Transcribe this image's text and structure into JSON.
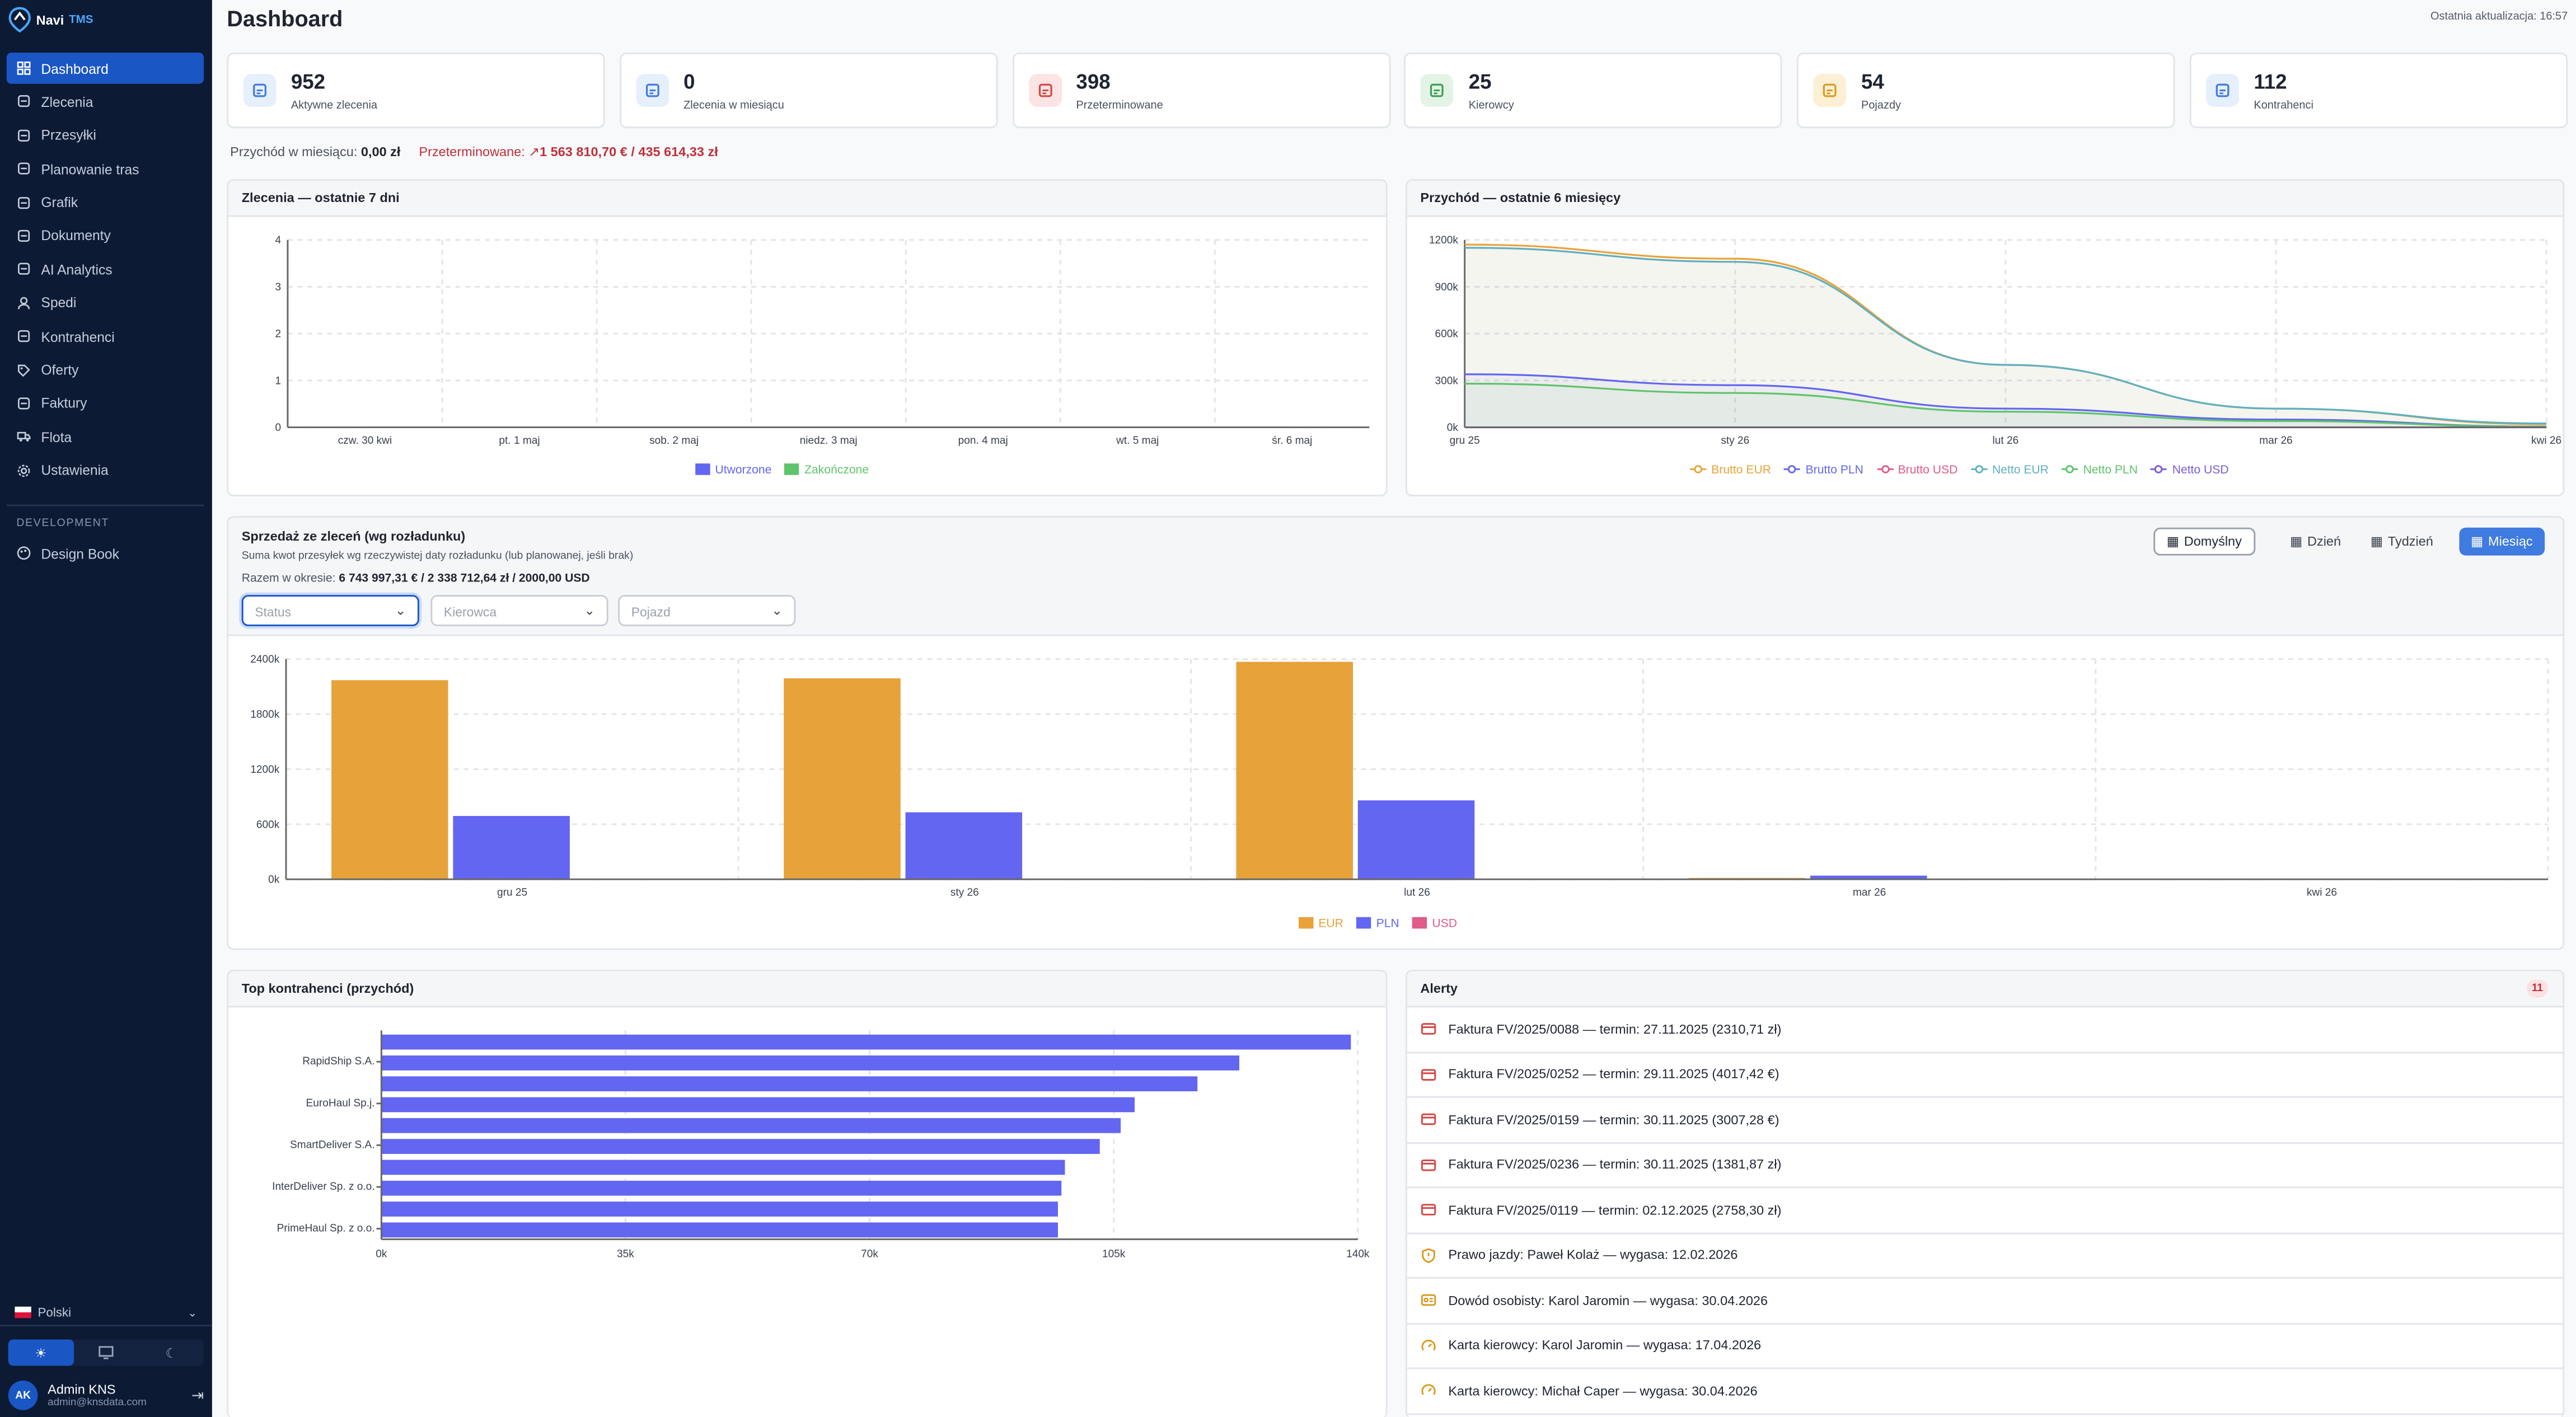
{
  "sidebar": {
    "brand_main": "Navi",
    "brand_suffix": "TMS",
    "items": [
      {
        "label": "Dashboard",
        "icon": "grid-icon"
      },
      {
        "label": "Zlecenia",
        "icon": "folder-icon"
      },
      {
        "label": "Przesyłki",
        "icon": "package-icon"
      },
      {
        "label": "Planowanie tras",
        "icon": "route-icon"
      },
      {
        "label": "Grafik",
        "icon": "calendar-icon"
      },
      {
        "label": "Dokumenty",
        "icon": "folder-open-icon"
      },
      {
        "label": "AI Analytics",
        "icon": "brain-icon"
      },
      {
        "label": "Spedi",
        "icon": "user-icon"
      },
      {
        "label": "Kontrahenci",
        "icon": "users-icon"
      },
      {
        "label": "Oferty",
        "icon": "tag-icon"
      },
      {
        "label": "Faktury",
        "icon": "invoice-icon"
      },
      {
        "label": "Flota",
        "icon": "truck-icon"
      },
      {
        "label": "Ustawienia",
        "icon": "gear-icon"
      }
    ],
    "dev_label": "DEVELOPMENT",
    "dev_item": "Design Book",
    "language": "Polski",
    "user_initials": "AK",
    "user_name": "Admin KNS",
    "user_email": "admin@knsdata.com"
  },
  "header": {
    "title": "Dashboard",
    "last_update": "Ostatnia aktualizacja: 16:57"
  },
  "stats": [
    {
      "value": "952",
      "label": "Aktywne zlecenia",
      "color": "#3f7be0"
    },
    {
      "value": "0",
      "label": "Zlecenia w miesiącu",
      "color": "#3f7be0"
    },
    {
      "value": "398",
      "label": "Przeterminowane",
      "color": "#d64545"
    },
    {
      "value": "25",
      "label": "Kierowcy",
      "color": "#3e9f54"
    },
    {
      "value": "54",
      "label": "Pojazdy",
      "color": "#d99a1e"
    },
    {
      "value": "112",
      "label": "Kontrahenci",
      "color": "#3f7be0"
    }
  ],
  "revenue": {
    "label": "Przychód w miesiącu:",
    "value": "0,00 zł",
    "overdue_label": "Przeterminowane:",
    "overdue_value": "1 563 810,70 € / 435 614,33 zł"
  },
  "orders_chart": {
    "title": "Zlecenia — ostatnie 7 dni",
    "chart_data": {
      "type": "line",
      "categories": [
        "czw. 30 kwi",
        "pt. 1 maj",
        "sob. 2 maj",
        "niedz. 3 maj",
        "pon. 4 maj",
        "wt. 5 maj",
        "śr. 6 maj"
      ],
      "yticks": [
        "0",
        "1",
        "2",
        "3",
        "4"
      ],
      "ylim": [
        0,
        4
      ],
      "series": [
        {
          "name": "Utworzone",
          "color": "#6366f1",
          "values": [
            0,
            0,
            0,
            0,
            0,
            0,
            0
          ]
        },
        {
          "name": "Zakończone",
          "color": "#5ec46b",
          "values": [
            0,
            0,
            0,
            0,
            0,
            0,
            0
          ]
        }
      ]
    }
  },
  "revenue_chart": {
    "title": "Przychód — ostatnie 6 miesięcy",
    "chart_data": {
      "type": "line",
      "categories": [
        "gru 25",
        "sty 26",
        "lut 26",
        "mar 26",
        "kwi 26"
      ],
      "yticks": [
        "0k",
        "300k",
        "600k",
        "900k",
        "1200k"
      ],
      "ylim": [
        0,
        1200000
      ],
      "series": [
        {
          "name": "Brutto EUR",
          "color": "#e8a23a",
          "values": [
            1170000,
            1080000,
            400000,
            120000,
            20000
          ]
        },
        {
          "name": "Brutto PLN",
          "color": "#6366f1",
          "values": [
            340000,
            270000,
            120000,
            50000,
            5000
          ]
        },
        {
          "name": "Brutto USD",
          "color": "#e05a8a",
          "values": [
            0,
            0,
            0,
            0,
            0
          ]
        },
        {
          "name": "Netto EUR",
          "color": "#5fb0c0",
          "values": [
            1150000,
            1060000,
            400000,
            120000,
            25000
          ]
        },
        {
          "name": "Netto PLN",
          "color": "#5ec46b",
          "values": [
            280000,
            220000,
            100000,
            40000,
            4000
          ]
        },
        {
          "name": "Netto USD",
          "color": "#7b5cd6",
          "values": [
            0,
            0,
            0,
            0,
            0
          ]
        }
      ]
    }
  },
  "sales": {
    "title": "Sprzedaż ze zleceń (wg rozładunku)",
    "subtitle": "Suma kwot przesyłek wg rzeczywistej daty rozładunku (lub planowanej, jeśli brak)",
    "sum_label": "Razem w okresie:",
    "sum_value": "6 743 997,31 € / 2 338 712,64 zł / 2000,00 USD",
    "filters": {
      "status": "Status",
      "driver": "Kierowca",
      "vehicle": "Pojazd"
    },
    "buttons": {
      "default": "Domyślny",
      "day": "Dzień",
      "week": "Tydzień",
      "month": "Miesiąc"
    },
    "chart_data": {
      "type": "bar",
      "categories": [
        "gru 25",
        "sty 26",
        "lut 26",
        "mar 26",
        "kwi 26"
      ],
      "yticks": [
        "0k",
        "600k",
        "1200k",
        "1800k",
        "2400k"
      ],
      "ylim": [
        0,
        2400000
      ],
      "series": [
        {
          "name": "EUR",
          "color": "#e8a23a",
          "values": [
            2170000,
            2190000,
            2370000,
            15000,
            0
          ]
        },
        {
          "name": "PLN",
          "color": "#6366f1",
          "values": [
            690000,
            730000,
            860000,
            40000,
            0
          ]
        },
        {
          "name": "USD",
          "color": "#e05a8a",
          "values": [
            0,
            0,
            0,
            2000,
            0
          ]
        }
      ]
    }
  },
  "top_clients": {
    "title": "Top kontrahenci (przychód)",
    "chart_data": {
      "type": "bar",
      "orientation": "horizontal",
      "categories": [
        "",
        "RapidShip S.A.",
        "",
        "EuroHaul Sp.j.",
        "",
        "SmartDeliver S.A.",
        "",
        "InterDeliver Sp. z o.o.",
        "",
        "PrimeHaul Sp. z o.o."
      ],
      "values": [
        139000,
        123000,
        117000,
        108000,
        106000,
        103000,
        98000,
        97500,
        97000,
        97000
      ],
      "xticks": [
        "0k",
        "35k",
        "70k",
        "105k",
        "140k"
      ],
      "xlim": [
        0,
        140000
      ],
      "color": "#6366f1"
    }
  },
  "alerts": {
    "title": "Alerty",
    "count": "11",
    "items": [
      {
        "icon": "invoice-alert-icon",
        "color": "#d64545",
        "text": "Faktura FV/2025/0088 — termin: 27.11.2025 (2310,71 zł)"
      },
      {
        "icon": "invoice-alert-icon",
        "color": "#d64545",
        "text": "Faktura FV/2025/0252 — termin: 29.11.2025 (4017,42 €)"
      },
      {
        "icon": "invoice-alert-icon",
        "color": "#d64545",
        "text": "Faktura FV/2025/0159 — termin: 30.11.2025 (3007,28 €)"
      },
      {
        "icon": "invoice-alert-icon",
        "color": "#d64545",
        "text": "Faktura FV/2025/0236 — termin: 30.11.2025 (1381,87 zł)"
      },
      {
        "icon": "invoice-alert-icon",
        "color": "#d64545",
        "text": "Faktura FV/2025/0119 — termin: 02.12.2025 (2758,30 zł)"
      },
      {
        "icon": "shield-alert-icon",
        "color": "#d99a1e",
        "text": "Prawo jazdy: Paweł Kolaż — wygasa: 12.02.2026"
      },
      {
        "icon": "id-card-icon",
        "color": "#d99a1e",
        "text": "Dowód osobisty: Karol Jaromin — wygasa: 30.04.2026"
      },
      {
        "icon": "gauge-icon",
        "color": "#d99a1e",
        "text": "Karta kierowcy: Karol Jaromin — wygasa: 17.04.2026"
      },
      {
        "icon": "gauge-icon",
        "color": "#d99a1e",
        "text": "Karta kierowcy: Michał Caper — wygasa: 30.04.2026"
      }
    ]
  }
}
